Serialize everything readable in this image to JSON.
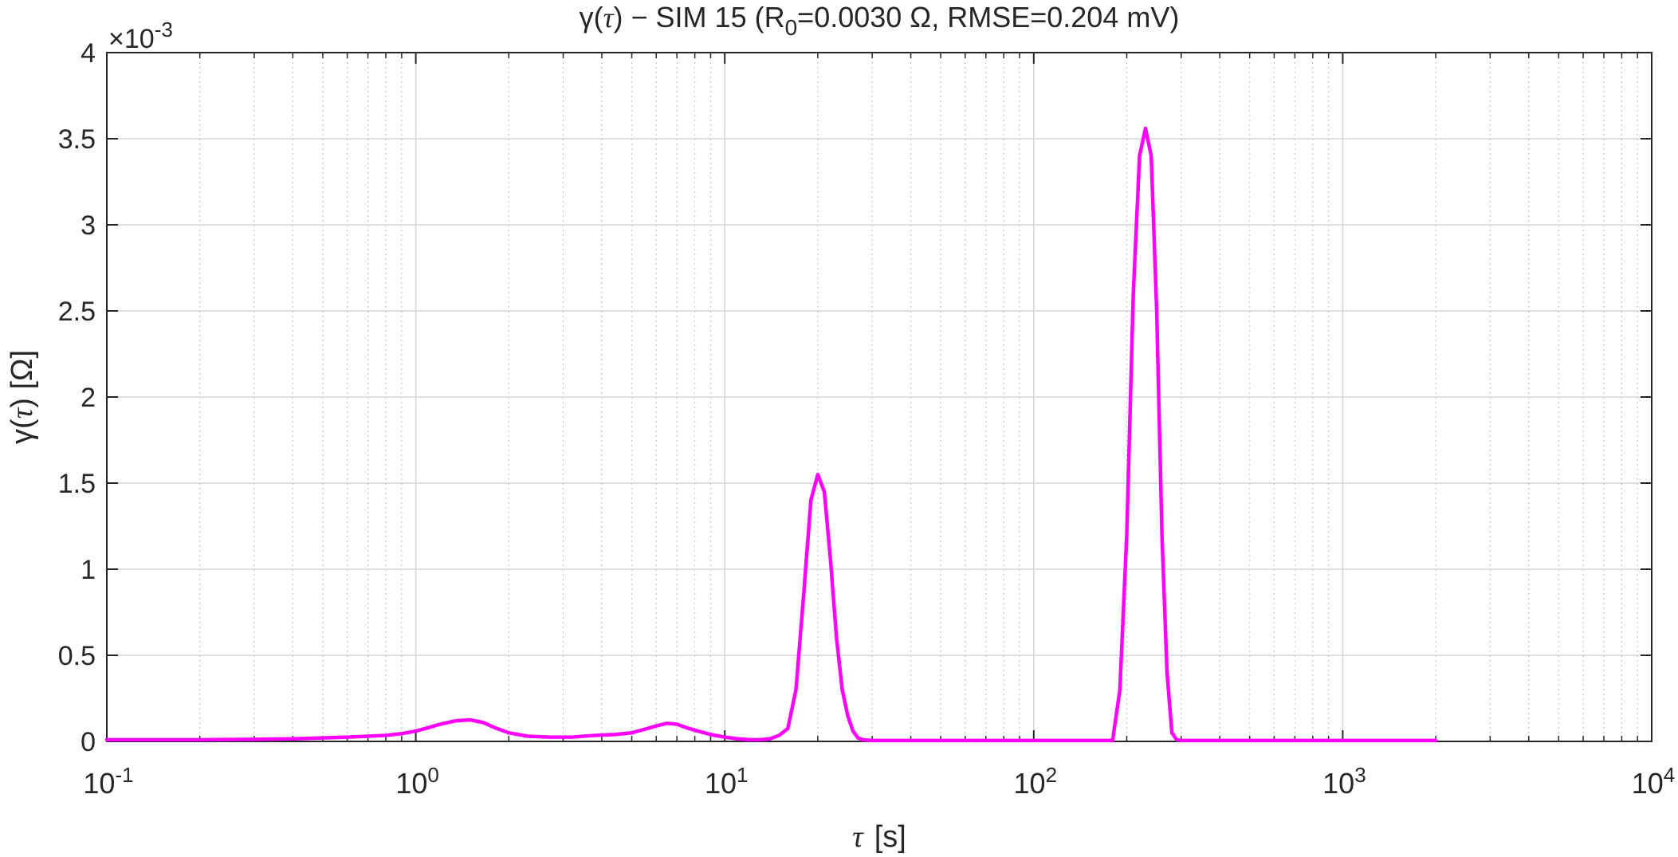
{
  "chart_data": {
    "type": "line",
    "title": {
      "prefix": "γ(",
      "tau": "τ",
      "suffix_main": ") − SIM 15   (R",
      "subscript": "0",
      "suffix_end": "=0.0030 Ω,  RMSE=0.204 mV)"
    },
    "xlabel": {
      "symbol": "τ",
      "unit": "[s]"
    },
    "ylabel": {
      "prefix": "γ(",
      "symbol": "τ",
      "suffix": ") [Ω]"
    },
    "y_exponent": {
      "base": "×10",
      "power": "-3"
    },
    "x_scale": "log",
    "xlim": [
      0.1,
      10000
    ],
    "ylim": [
      0,
      0.004
    ],
    "x_ticks": [
      {
        "base": "10",
        "exp": "-1",
        "value": 0.1
      },
      {
        "base": "10",
        "exp": "0",
        "value": 1
      },
      {
        "base": "10",
        "exp": "1",
        "value": 10
      },
      {
        "base": "10",
        "exp": "2",
        "value": 100
      },
      {
        "base": "10",
        "exp": "3",
        "value": 1000
      },
      {
        "base": "10",
        "exp": "4",
        "value": 10000
      }
    ],
    "y_ticks": [
      {
        "label": "0",
        "value": 0
      },
      {
        "label": "0.5",
        "value": 0.0005
      },
      {
        "label": "1",
        "value": 0.001
      },
      {
        "label": "1.5",
        "value": 0.0015
      },
      {
        "label": "2",
        "value": 0.002
      },
      {
        "label": "2.5",
        "value": 0.0025
      },
      {
        "label": "3",
        "value": 0.003
      },
      {
        "label": "3.5",
        "value": 0.0035
      },
      {
        "label": "4",
        "value": 0.004
      }
    ],
    "grid": true,
    "minor_grid_x": true,
    "line_color": "#ff00ff",
    "series": [
      {
        "x": [
          0.1,
          0.2,
          0.3,
          0.4,
          0.5,
          0.6,
          0.7,
          0.8,
          0.9,
          1.0,
          1.1,
          1.2,
          1.35,
          1.5,
          1.65,
          1.8,
          2.0,
          2.3,
          2.7,
          3.2,
          3.8,
          4.4,
          5.0,
          5.5,
          6.0,
          6.5,
          7.0,
          7.5,
          8.0,
          9.0,
          10,
          11,
          12,
          13,
          14,
          15,
          16,
          17,
          18,
          19,
          20,
          21,
          22,
          23,
          24,
          25,
          26,
          27,
          28,
          30,
          35,
          50,
          100,
          150,
          180,
          190,
          200,
          210,
          220,
          230,
          240,
          250,
          260,
          270,
          280,
          290,
          300,
          350,
          500,
          1000,
          2000
        ],
        "y": [
          1e-05,
          1e-05,
          1.2e-05,
          1.5e-05,
          2e-05,
          2.5e-05,
          3e-05,
          3.5e-05,
          4.5e-05,
          6e-05,
          8e-05,
          0.0001,
          0.00012,
          0.000125,
          0.00011,
          8e-05,
          5e-05,
          3e-05,
          2.5e-05,
          2.5e-05,
          3.5e-05,
          4e-05,
          5e-05,
          7e-05,
          9e-05,
          0.000105,
          0.0001,
          8e-05,
          6.5e-05,
          4e-05,
          2.5e-05,
          1.5e-05,
          1e-05,
          1e-05,
          1.5e-05,
          3.5e-05,
          7.5e-05,
          0.0003,
          0.00085,
          0.0014,
          0.00155,
          0.00145,
          0.00105,
          0.0006,
          0.0003,
          0.00015,
          6e-05,
          2e-05,
          1e-05,
          5e-06,
          5e-06,
          5e-06,
          5e-06,
          5e-06,
          5e-06,
          0.0003,
          0.0012,
          0.0026,
          0.0034,
          0.00356,
          0.0034,
          0.0025,
          0.0012,
          0.0004,
          5e-05,
          1e-05,
          5e-06,
          5e-06,
          5e-06,
          5e-06,
          5e-06
        ]
      }
    ]
  }
}
